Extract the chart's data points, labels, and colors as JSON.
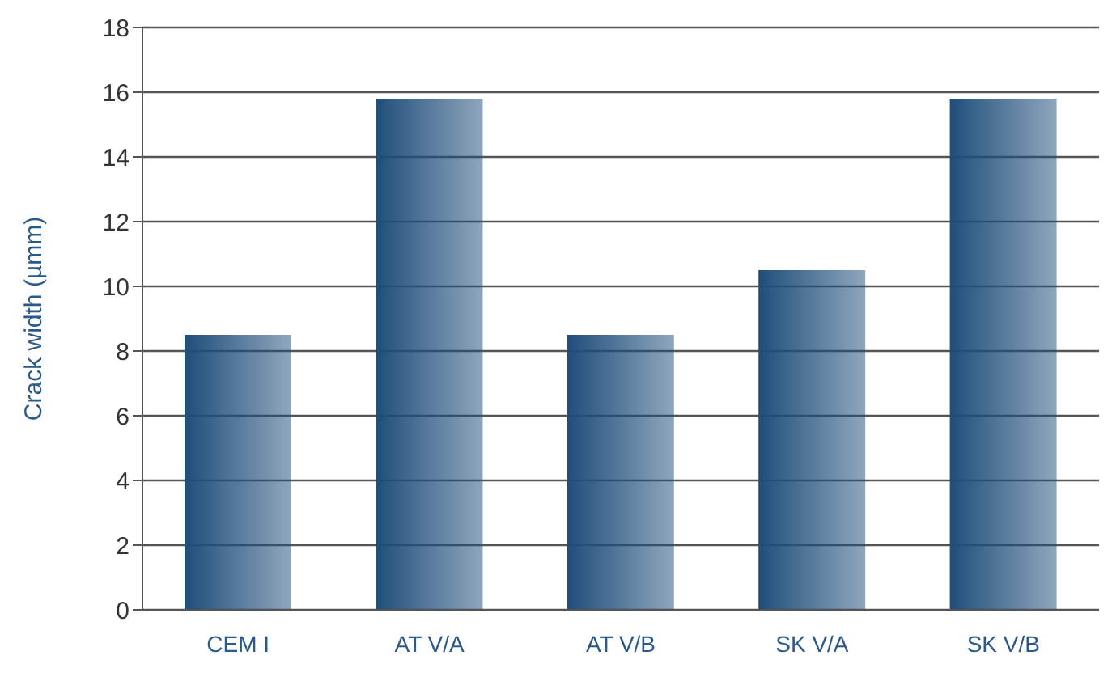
{
  "chart_data": {
    "type": "bar",
    "ylabel": "Crack width (µmm)",
    "categories": [
      "CEM I",
      "AT V/A",
      "AT V/B",
      "SK V/A",
      "SK V/B"
    ],
    "values": [
      8.5,
      15.8,
      8.5,
      10.5,
      15.8
    ],
    "color": "#1f4e7a",
    "ylim": [
      0,
      18
    ],
    "yticks": [
      0,
      2,
      4,
      6,
      8,
      10,
      12,
      14,
      16,
      18
    ],
    "grid": "y"
  }
}
